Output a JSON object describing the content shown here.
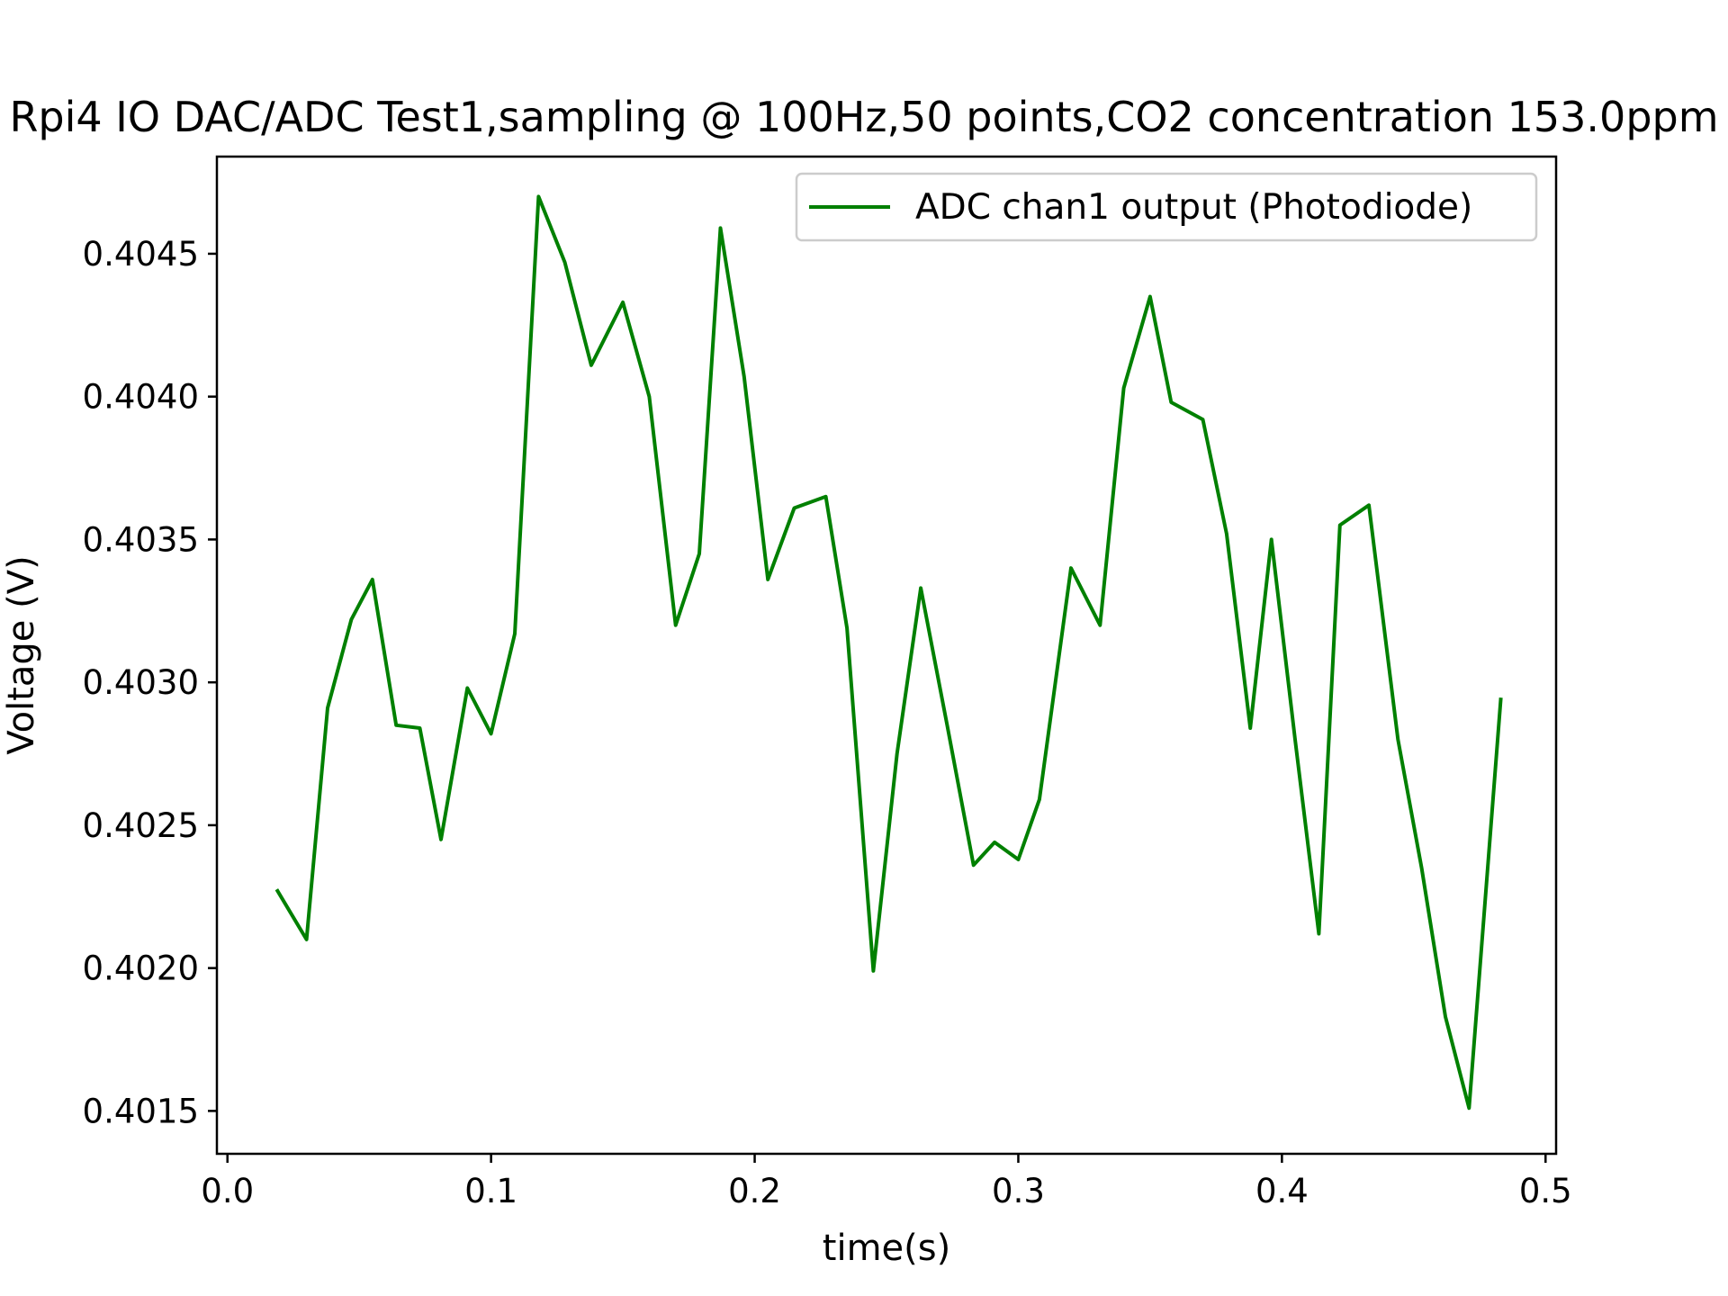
{
  "chart_data": {
    "type": "line",
    "title": "Rpi4 IO DAC/ADC Test1,sampling @ 100Hz,50 points,CO2 concentration 153.0ppm",
    "xlabel": "time(s)",
    "ylabel": "Voltage (V)",
    "xlim": [
      -0.004,
      0.504
    ],
    "ylim": [
      0.40135,
      0.40484
    ],
    "x_ticks": [
      0.0,
      0.1,
      0.2,
      0.3,
      0.4,
      0.5
    ],
    "x_tick_labels": [
      "0.0",
      "0.1",
      "0.2",
      "0.3",
      "0.4",
      "0.5"
    ],
    "y_ticks": [
      0.4015,
      0.402,
      0.4025,
      0.403,
      0.4035,
      0.404,
      0.4045
    ],
    "y_tick_labels": [
      "0.4015",
      "0.4020",
      "0.4025",
      "0.4030",
      "0.4035",
      "0.4040",
      "0.4045"
    ],
    "grid": false,
    "legend_position": "top-right",
    "series": [
      {
        "name": "ADC chan1 output  (Photodiode)",
        "color": "#008000",
        "x": [
          0.019,
          0.03,
          0.038,
          0.047,
          0.055,
          0.064,
          0.073,
          0.081,
          0.091,
          0.1,
          0.109,
          0.118,
          0.128,
          0.138,
          0.15,
          0.16,
          0.17,
          0.179,
          0.187,
          0.196,
          0.205,
          0.215,
          0.227,
          0.235,
          0.245,
          0.254,
          0.263,
          0.273,
          0.283,
          0.291,
          0.3,
          0.308,
          0.32,
          0.331,
          0.34,
          0.35,
          0.358,
          0.37,
          0.379,
          0.388,
          0.396,
          0.405,
          0.414,
          0.422,
          0.433,
          0.444,
          0.453,
          0.462,
          0.471,
          0.483
        ],
        "values": [
          0.40227,
          0.4021,
          0.40291,
          0.40322,
          0.40336,
          0.40285,
          0.40284,
          0.40245,
          0.40298,
          0.40282,
          0.40317,
          0.4047,
          0.40447,
          0.40411,
          0.40433,
          0.404,
          0.4032,
          0.40345,
          0.40459,
          0.40407,
          0.40336,
          0.40361,
          0.40365,
          0.40319,
          0.40199,
          0.40275,
          0.40333,
          0.40285,
          0.40236,
          0.40244,
          0.40238,
          0.40259,
          0.4034,
          0.4032,
          0.40403,
          0.40435,
          0.40398,
          0.40392,
          0.40352,
          0.40284,
          0.4035,
          0.4028,
          0.40212,
          0.40355,
          0.40362,
          0.4028,
          0.40235,
          0.40183,
          0.40151,
          0.40294
        ]
      }
    ]
  }
}
